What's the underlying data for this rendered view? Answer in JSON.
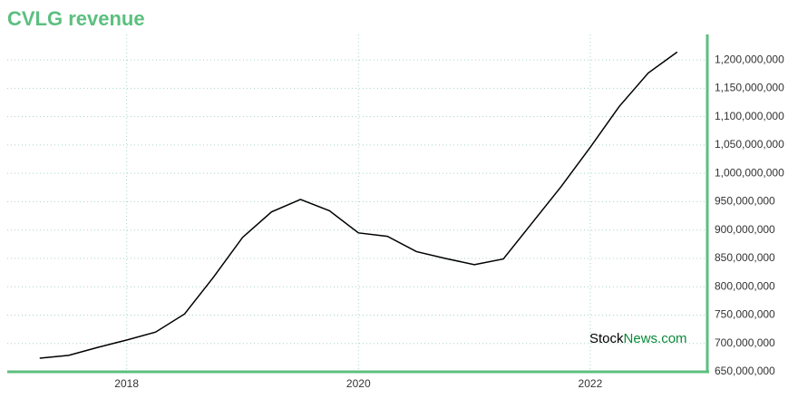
{
  "chart_data": {
    "type": "line",
    "title": "CVLG revenue",
    "x": [
      2017.25,
      2017.5,
      2017.75,
      2018,
      2018.25,
      2018.5,
      2018.75,
      2019,
      2019.25,
      2019.5,
      2019.75,
      2020,
      2020.25,
      2020.5,
      2020.75,
      2021,
      2021.25,
      2021.5,
      2021.75,
      2022,
      2022.25,
      2022.5,
      2022.75
    ],
    "series": [
      {
        "name": "Revenue",
        "color": "#000000",
        "values": [
          674000000,
          679000000,
          693000000,
          706000000,
          720000000,
          752000000,
          817000000,
          887000000,
          932000000,
          954000000,
          934000000,
          895000000,
          889000000,
          862000000,
          850000000,
          839000000,
          849000000,
          913000000,
          977000000,
          1046000000,
          1118000000,
          1177000000,
          1214000000
        ]
      }
    ],
    "xlim": [
      2016.97,
      2023.01
    ],
    "xticks": [
      2018,
      2020,
      2022
    ],
    "ylim": [
      650000000,
      1245000000
    ],
    "yticks": [
      {
        "value": 650000000,
        "label": "650,000,000"
      },
      {
        "value": 700000000,
        "label": "700,000,000"
      },
      {
        "value": 750000000,
        "label": "750,000,000"
      },
      {
        "value": 800000000,
        "label": "800,000,000"
      },
      {
        "value": 850000000,
        "label": "850,000,000"
      },
      {
        "value": 900000000,
        "label": "900,000,000"
      },
      {
        "value": 950000000,
        "label": "950,000,000"
      },
      {
        "value": 1000000000,
        "label": "1,000,000,000"
      },
      {
        "value": 1050000000,
        "label": "1,050,000,000"
      },
      {
        "value": 1100000000,
        "label": "1,100,000,000"
      },
      {
        "value": 1150000000,
        "label": "1,150,000,000"
      },
      {
        "value": 1200000000,
        "label": "1,200,000,000"
      }
    ],
    "grid": true,
    "axis_color": "#5cbf7f",
    "watermark": [
      "Stock",
      "News.com"
    ]
  }
}
